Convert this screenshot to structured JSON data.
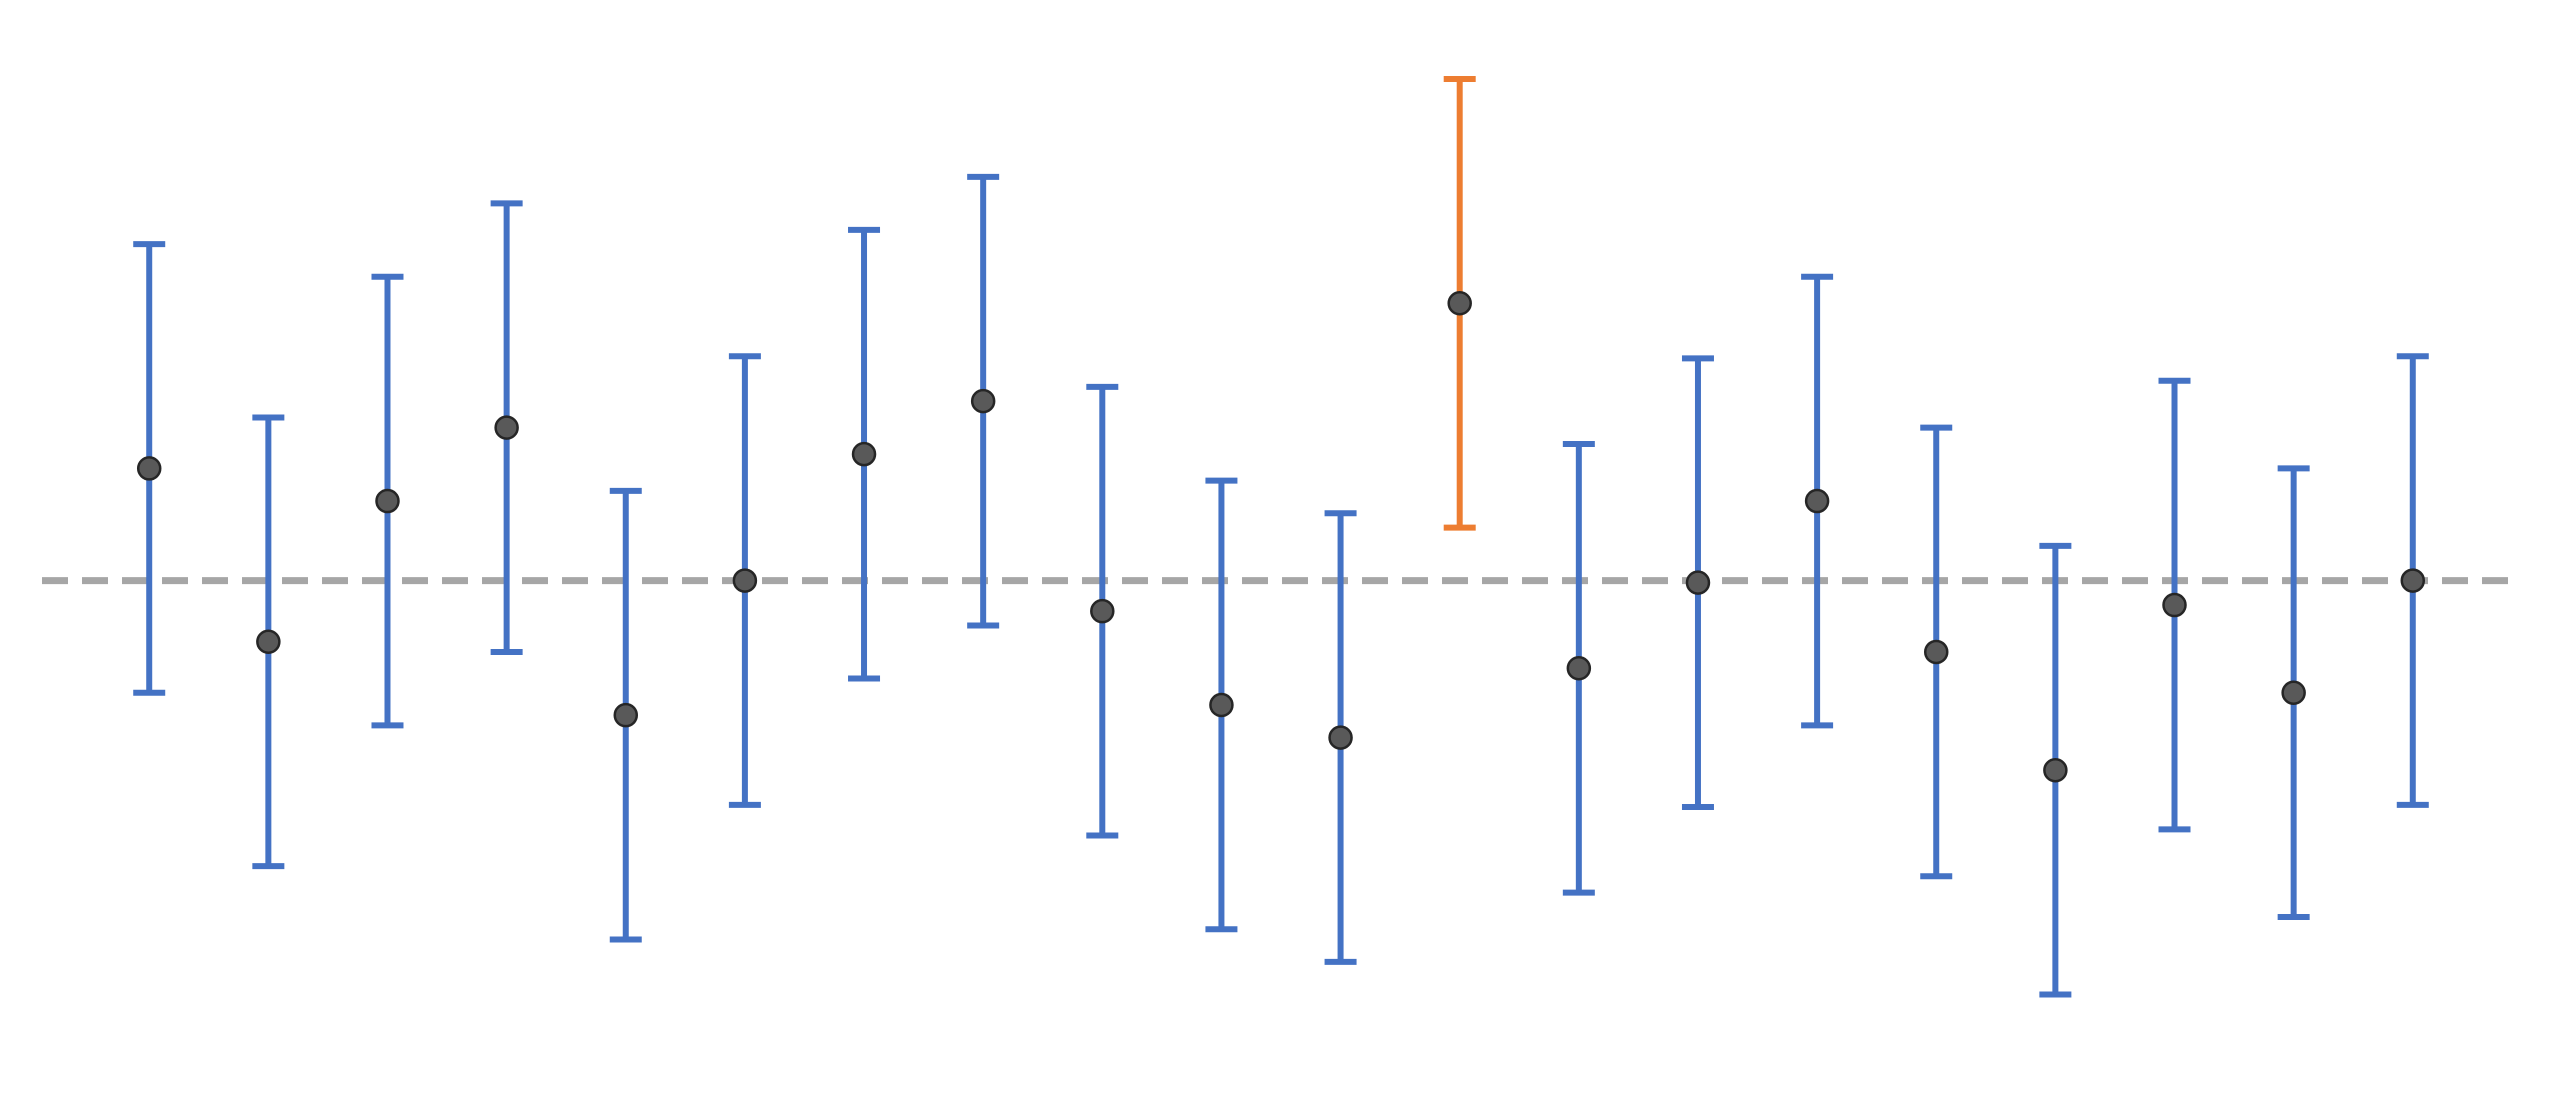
{
  "chart_data": {
    "type": "scatter",
    "x": [
      1,
      2,
      3,
      4,
      5,
      6,
      7,
      8,
      9,
      10,
      11,
      12,
      13,
      14,
      15,
      16,
      17,
      18,
      19,
      20
    ],
    "values": [
      0.55,
      -0.3,
      0.39,
      0.75,
      -0.66,
      0.0,
      0.62,
      0.88,
      -0.15,
      -0.61,
      -0.77,
      1.36,
      -0.43,
      -0.01,
      0.39,
      -0.35,
      -0.93,
      -0.12,
      -0.55,
      0.0
    ],
    "lower": [
      -0.55,
      -1.4,
      -0.71,
      -0.35,
      -1.76,
      -1.1,
      -0.48,
      -0.22,
      -1.25,
      -1.71,
      -1.87,
      0.26,
      -1.53,
      -1.11,
      -0.71,
      -1.45,
      -2.03,
      -1.22,
      -1.65,
      -1.1
    ],
    "upper": [
      1.65,
      0.8,
      1.49,
      1.85,
      0.44,
      1.1,
      1.72,
      1.98,
      0.95,
      0.49,
      0.33,
      2.46,
      0.67,
      1.09,
      1.49,
      0.75,
      0.17,
      0.98,
      0.55,
      1.1
    ],
    "highlight_index": 11,
    "reference_y": 0,
    "ylim": [
      -2.4,
      2.7
    ],
    "xlim": [
      0.1,
      20.9
    ],
    "colors": {
      "interval": "#4472c4",
      "highlight": "#ed7d31",
      "point_fill": "#595959",
      "point_stroke": "#262626",
      "reference_line": "#a6a6a6"
    },
    "title": "",
    "xlabel": "",
    "ylabel": "",
    "grid": false,
    "legend": "none"
  }
}
